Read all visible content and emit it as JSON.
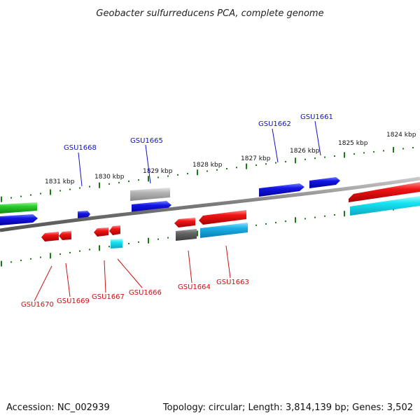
{
  "title": "Geobacter sulfurreducens PCA, complete genome",
  "footer": {
    "accession": "Accession: NC_002939",
    "summary": "Topology: circular; Length: 3,814,139 bp; Genes: 3,502"
  },
  "colors": {
    "forward_label": "#1010cc",
    "reverse_label": "#cc1010",
    "tick": "#1a7a1a",
    "backbone": "#7a7a7a"
  },
  "ruler": {
    "unit": "kbp",
    "labels": [
      "1831 kbp",
      "1830 kbp",
      "1829 kbp",
      "1828 kbp",
      "1827 kbp",
      "1826 kbp",
      "1825 kbp",
      "1824 kbp"
    ]
  },
  "genes": {
    "forward": [
      "GSU1668",
      "GSU1665",
      "GSU1662",
      "GSU1661"
    ],
    "reverse": [
      "GSU1670",
      "GSU1669",
      "GSU1667",
      "GSU1666",
      "GSU1664",
      "GSU1663"
    ]
  },
  "feature_colors": [
    "blue",
    "red",
    "green",
    "cyan",
    "gray"
  ]
}
